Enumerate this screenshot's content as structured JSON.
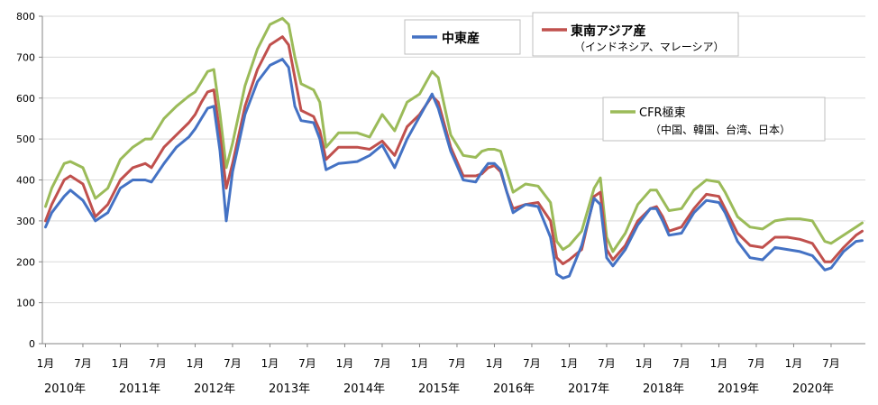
{
  "chart_data": {
    "type": "line",
    "title": "",
    "xlabel": "",
    "ylabel": "",
    "ylim": [
      0,
      800
    ],
    "yticks": [
      0,
      100,
      200,
      300,
      400,
      500,
      600,
      700,
      800
    ],
    "grid": "horizontal",
    "x_start": "2010-01",
    "x_end": "2020-12",
    "month_labels": [
      "1月",
      "7月"
    ],
    "year_labels": [
      "2010年",
      "2011年",
      "2012年",
      "2013年",
      "2014年",
      "2015年",
      "2016年",
      "2017年",
      "2018年",
      "2019年",
      "2020年"
    ],
    "legend": {
      "placement": "top",
      "middle_east": "中東産",
      "southeast_asia": "東南アジア産",
      "southeast_asia_note": "（インドネシア、マレーシア）",
      "cfr": "CFR極東",
      "cfr_note": "（中国、韓国、台湾、日本）"
    },
    "series": [
      {
        "name": "中東産",
        "color": "#4472C4",
        "points": [
          [
            "2010-01",
            285
          ],
          [
            "2010-02",
            320
          ],
          [
            "2010-04",
            360
          ],
          [
            "2010-05",
            375
          ],
          [
            "2010-07",
            350
          ],
          [
            "2010-09",
            300
          ],
          [
            "2010-11",
            320
          ],
          [
            "2011-01",
            380
          ],
          [
            "2011-03",
            400
          ],
          [
            "2011-05",
            400
          ],
          [
            "2011-06",
            395
          ],
          [
            "2011-08",
            440
          ],
          [
            "2011-10",
            480
          ],
          [
            "2011-12",
            505
          ],
          [
            "2012-01",
            525
          ],
          [
            "2012-02",
            550
          ],
          [
            "2012-03",
            575
          ],
          [
            "2012-04",
            580
          ],
          [
            "2012-05",
            470
          ],
          [
            "2012-06",
            300
          ],
          [
            "2012-07",
            420
          ],
          [
            "2012-09",
            560
          ],
          [
            "2012-11",
            640
          ],
          [
            "2013-01",
            680
          ],
          [
            "2013-03",
            695
          ],
          [
            "2013-04",
            675
          ],
          [
            "2013-05",
            580
          ],
          [
            "2013-06",
            545
          ],
          [
            "2013-08",
            540
          ],
          [
            "2013-09",
            500
          ],
          [
            "2013-10",
            425
          ],
          [
            "2013-12",
            440
          ],
          [
            "2014-03",
            445
          ],
          [
            "2014-05",
            460
          ],
          [
            "2014-07",
            485
          ],
          [
            "2014-09",
            430
          ],
          [
            "2014-11",
            500
          ],
          [
            "2015-01",
            555
          ],
          [
            "2015-03",
            610
          ],
          [
            "2015-04",
            575
          ],
          [
            "2015-06",
            470
          ],
          [
            "2015-08",
            400
          ],
          [
            "2015-10",
            395
          ],
          [
            "2015-11",
            420
          ],
          [
            "2015-12",
            440
          ],
          [
            "2016-01",
            440
          ],
          [
            "2016-02",
            425
          ],
          [
            "2016-03",
            370
          ],
          [
            "2016-04",
            320
          ],
          [
            "2016-06",
            340
          ],
          [
            "2016-08",
            335
          ],
          [
            "2016-10",
            260
          ],
          [
            "2016-11",
            170
          ],
          [
            "2016-12",
            160
          ],
          [
            "2017-01",
            165
          ],
          [
            "2017-03",
            240
          ],
          [
            "2017-05",
            355
          ],
          [
            "2017-06",
            340
          ],
          [
            "2017-07",
            210
          ],
          [
            "2017-08",
            190
          ],
          [
            "2017-10",
            230
          ],
          [
            "2017-12",
            290
          ],
          [
            "2018-02",
            330
          ],
          [
            "2018-03",
            330
          ],
          [
            "2018-04",
            300
          ],
          [
            "2018-05",
            265
          ],
          [
            "2018-07",
            270
          ],
          [
            "2018-09",
            320
          ],
          [
            "2018-11",
            350
          ],
          [
            "2019-01",
            345
          ],
          [
            "2019-02",
            320
          ],
          [
            "2019-04",
            250
          ],
          [
            "2019-06",
            210
          ],
          [
            "2019-08",
            205
          ],
          [
            "2019-10",
            235
          ],
          [
            "2019-12",
            230
          ],
          [
            "2020-02",
            225
          ],
          [
            "2020-04",
            215
          ],
          [
            "2020-06",
            180
          ],
          [
            "2020-07",
            185
          ],
          [
            "2020-09",
            225
          ],
          [
            "2020-11",
            250
          ],
          [
            "2020-12",
            252
          ]
        ]
      },
      {
        "name": "東南アジア産",
        "color": "#C0504D",
        "points": [
          [
            "2010-01",
            300
          ],
          [
            "2010-02",
            340
          ],
          [
            "2010-04",
            400
          ],
          [
            "2010-05",
            410
          ],
          [
            "2010-07",
            390
          ],
          [
            "2010-09",
            310
          ],
          [
            "2010-11",
            340
          ],
          [
            "2011-01",
            400
          ],
          [
            "2011-03",
            430
          ],
          [
            "2011-05",
            440
          ],
          [
            "2011-06",
            430
          ],
          [
            "2011-08",
            480
          ],
          [
            "2011-10",
            510
          ],
          [
            "2011-12",
            540
          ],
          [
            "2012-01",
            560
          ],
          [
            "2012-02",
            590
          ],
          [
            "2012-03",
            615
          ],
          [
            "2012-04",
            620
          ],
          [
            "2012-05",
            510
          ],
          [
            "2012-06",
            380
          ],
          [
            "2012-07",
            440
          ],
          [
            "2012-09",
            580
          ],
          [
            "2012-11",
            670
          ],
          [
            "2013-01",
            730
          ],
          [
            "2013-03",
            750
          ],
          [
            "2013-04",
            730
          ],
          [
            "2013-05",
            650
          ],
          [
            "2013-06",
            570
          ],
          [
            "2013-08",
            555
          ],
          [
            "2013-09",
            520
          ],
          [
            "2013-10",
            450
          ],
          [
            "2013-12",
            480
          ],
          [
            "2014-03",
            480
          ],
          [
            "2014-05",
            475
          ],
          [
            "2014-07",
            495
          ],
          [
            "2014-09",
            460
          ],
          [
            "2014-11",
            530
          ],
          [
            "2015-01",
            560
          ],
          [
            "2015-03",
            605
          ],
          [
            "2015-04",
            590
          ],
          [
            "2015-06",
            480
          ],
          [
            "2015-08",
            410
          ],
          [
            "2015-10",
            410
          ],
          [
            "2015-11",
            415
          ],
          [
            "2015-12",
            430
          ],
          [
            "2016-01",
            435
          ],
          [
            "2016-02",
            420
          ],
          [
            "2016-03",
            370
          ],
          [
            "2016-04",
            330
          ],
          [
            "2016-06",
            340
          ],
          [
            "2016-08",
            345
          ],
          [
            "2016-10",
            300
          ],
          [
            "2016-11",
            210
          ],
          [
            "2016-12",
            195
          ],
          [
            "2017-01",
            205
          ],
          [
            "2017-03",
            230
          ],
          [
            "2017-05",
            360
          ],
          [
            "2017-06",
            370
          ],
          [
            "2017-07",
            230
          ],
          [
            "2017-08",
            205
          ],
          [
            "2017-10",
            240
          ],
          [
            "2017-12",
            300
          ],
          [
            "2018-02",
            330
          ],
          [
            "2018-03",
            335
          ],
          [
            "2018-04",
            310
          ],
          [
            "2018-05",
            275
          ],
          [
            "2018-07",
            285
          ],
          [
            "2018-09",
            330
          ],
          [
            "2018-11",
            365
          ],
          [
            "2019-01",
            360
          ],
          [
            "2019-02",
            330
          ],
          [
            "2019-04",
            270
          ],
          [
            "2019-06",
            240
          ],
          [
            "2019-08",
            235
          ],
          [
            "2019-10",
            260
          ],
          [
            "2019-12",
            260
          ],
          [
            "2020-02",
            255
          ],
          [
            "2020-04",
            245
          ],
          [
            "2020-06",
            200
          ],
          [
            "2020-07",
            200
          ],
          [
            "2020-09",
            235
          ],
          [
            "2020-11",
            265
          ],
          [
            "2020-12",
            275
          ]
        ]
      },
      {
        "name": "CFR極東",
        "color": "#9BBB59",
        "points": [
          [
            "2010-01",
            335
          ],
          [
            "2010-02",
            380
          ],
          [
            "2010-04",
            440
          ],
          [
            "2010-05",
            445
          ],
          [
            "2010-07",
            430
          ],
          [
            "2010-09",
            355
          ],
          [
            "2010-11",
            380
          ],
          [
            "2011-01",
            450
          ],
          [
            "2011-03",
            480
          ],
          [
            "2011-05",
            500
          ],
          [
            "2011-06",
            500
          ],
          [
            "2011-08",
            550
          ],
          [
            "2011-10",
            580
          ],
          [
            "2011-12",
            605
          ],
          [
            "2012-01",
            615
          ],
          [
            "2012-02",
            640
          ],
          [
            "2012-03",
            665
          ],
          [
            "2012-04",
            670
          ],
          [
            "2012-05",
            560
          ],
          [
            "2012-06",
            430
          ],
          [
            "2012-07",
            490
          ],
          [
            "2012-09",
            630
          ],
          [
            "2012-11",
            720
          ],
          [
            "2013-01",
            780
          ],
          [
            "2013-03",
            795
          ],
          [
            "2013-04",
            780
          ],
          [
            "2013-05",
            700
          ],
          [
            "2013-06",
            635
          ],
          [
            "2013-08",
            620
          ],
          [
            "2013-09",
            590
          ],
          [
            "2013-10",
            480
          ],
          [
            "2013-12",
            515
          ],
          [
            "2014-03",
            515
          ],
          [
            "2014-05",
            505
          ],
          [
            "2014-07",
            560
          ],
          [
            "2014-09",
            520
          ],
          [
            "2014-11",
            590
          ],
          [
            "2015-01",
            610
          ],
          [
            "2015-03",
            665
          ],
          [
            "2015-04",
            650
          ],
          [
            "2015-06",
            510
          ],
          [
            "2015-08",
            460
          ],
          [
            "2015-10",
            455
          ],
          [
            "2015-11",
            470
          ],
          [
            "2015-12",
            475
          ],
          [
            "2016-01",
            475
          ],
          [
            "2016-02",
            470
          ],
          [
            "2016-03",
            420
          ],
          [
            "2016-04",
            370
          ],
          [
            "2016-06",
            390
          ],
          [
            "2016-08",
            385
          ],
          [
            "2016-10",
            345
          ],
          [
            "2016-11",
            250
          ],
          [
            "2016-12",
            230
          ],
          [
            "2017-01",
            240
          ],
          [
            "2017-03",
            275
          ],
          [
            "2017-05",
            380
          ],
          [
            "2017-06",
            405
          ],
          [
            "2017-07",
            260
          ],
          [
            "2017-08",
            225
          ],
          [
            "2017-10",
            270
          ],
          [
            "2017-12",
            340
          ],
          [
            "2018-02",
            375
          ],
          [
            "2018-03",
            375
          ],
          [
            "2018-04",
            350
          ],
          [
            "2018-05",
            325
          ],
          [
            "2018-07",
            330
          ],
          [
            "2018-09",
            375
          ],
          [
            "2018-11",
            400
          ],
          [
            "2019-01",
            395
          ],
          [
            "2019-02",
            370
          ],
          [
            "2019-04",
            310
          ],
          [
            "2019-06",
            285
          ],
          [
            "2019-08",
            280
          ],
          [
            "2019-10",
            300
          ],
          [
            "2019-12",
            305
          ],
          [
            "2020-02",
            305
          ],
          [
            "2020-04",
            300
          ],
          [
            "2020-06",
            250
          ],
          [
            "2020-07",
            245
          ],
          [
            "2020-09",
            265
          ],
          [
            "2020-11",
            285
          ],
          [
            "2020-12",
            295
          ]
        ]
      }
    ]
  }
}
